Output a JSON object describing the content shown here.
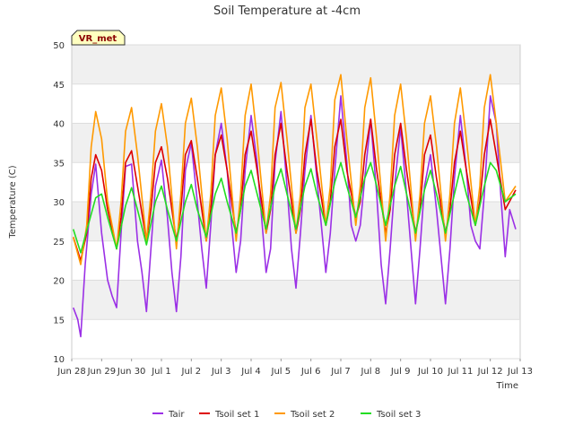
{
  "chart_data": {
    "type": "line",
    "title": "Soil Temperature at -4cm",
    "xlabel": "Time",
    "ylabel": "Temperature (C)",
    "ylim": [
      10,
      50
    ],
    "xlim": [
      0,
      15
    ],
    "y_ticks": [
      10,
      15,
      20,
      25,
      30,
      35,
      40,
      45,
      50
    ],
    "x_ticks": [
      {
        "v": 0,
        "label": "Jun 28"
      },
      {
        "v": 1,
        "label": "Jun 29"
      },
      {
        "v": 2,
        "label": "Jun 30"
      },
      {
        "v": 3,
        "label": "Jul 1"
      },
      {
        "v": 4,
        "label": "Jul 2"
      },
      {
        "v": 5,
        "label": "Jul 3"
      },
      {
        "v": 6,
        "label": "Jul 4"
      },
      {
        "v": 7,
        "label": "Jul 5"
      },
      {
        "v": 8,
        "label": "Jul 6"
      },
      {
        "v": 9,
        "label": "Jul 7"
      },
      {
        "v": 10,
        "label": "Jul 8"
      },
      {
        "v": 11,
        "label": "Jul 9"
      },
      {
        "v": 12,
        "label": "Jul 10"
      },
      {
        "v": 13,
        "label": "Jul 11"
      },
      {
        "v": 14,
        "label": "Jul 12"
      },
      {
        "v": 15,
        "label": "Jul 13"
      }
    ],
    "grid": true,
    "legend_position": "bottom-center",
    "annotation": "VR_met",
    "series": [
      {
        "name": "Tair",
        "color": "#9b30e6",
        "x": [
          0.05,
          0.2,
          0.3,
          0.45,
          0.65,
          0.8,
          1.0,
          1.2,
          1.35,
          1.5,
          1.65,
          1.8,
          2.0,
          2.2,
          2.35,
          2.5,
          2.65,
          2.8,
          3.0,
          3.2,
          3.35,
          3.5,
          3.65,
          3.8,
          4.0,
          4.2,
          4.35,
          4.5,
          4.65,
          4.8,
          5.0,
          5.2,
          5.35,
          5.5,
          5.65,
          5.8,
          6.0,
          6.2,
          6.35,
          6.5,
          6.65,
          6.8,
          7.0,
          7.2,
          7.35,
          7.5,
          7.65,
          7.8,
          8.0,
          8.2,
          8.35,
          8.5,
          8.65,
          8.8,
          9.0,
          9.2,
          9.35,
          9.5,
          9.65,
          9.8,
          10.0,
          10.2,
          10.35,
          10.5,
          10.65,
          10.8,
          11.0,
          11.2,
          11.35,
          11.5,
          11.65,
          11.8,
          12.0,
          12.2,
          12.35,
          12.5,
          12.65,
          12.8,
          13.0,
          13.2,
          13.35,
          13.5,
          13.65,
          13.8,
          14.0,
          14.2,
          14.35,
          14.5,
          14.65,
          14.85
        ],
        "y": [
          16.5,
          15,
          12.8,
          22,
          31,
          34.8,
          26,
          20,
          18,
          16.5,
          26,
          34.5,
          34.8,
          25,
          21,
          16,
          24,
          32,
          35.3,
          28,
          21,
          16,
          23,
          34,
          37.5,
          30,
          24,
          19,
          27,
          36,
          40,
          34,
          27,
          21,
          25,
          34,
          41,
          35,
          28,
          21,
          24,
          35,
          41.5,
          32,
          24,
          19,
          26,
          34,
          41,
          33,
          27,
          21,
          26,
          34,
          43.5,
          35,
          27,
          25,
          27,
          33,
          40.5,
          31,
          22,
          17,
          24,
          32,
          39.5,
          31,
          24,
          17,
          24,
          32,
          36,
          29,
          23,
          17,
          24,
          33,
          41,
          34,
          27,
          25,
          24,
          31,
          43.5,
          40,
          31,
          23,
          29,
          26.5
        ]
      },
      {
        "name": "Tsoil set 1",
        "color": "#dd0000",
        "x": [
          0.05,
          0.3,
          0.5,
          0.65,
          0.8,
          1.0,
          1.2,
          1.5,
          1.65,
          1.8,
          2.0,
          2.2,
          2.5,
          2.65,
          2.8,
          3.0,
          3.2,
          3.5,
          3.65,
          3.8,
          4.0,
          4.2,
          4.5,
          4.65,
          4.8,
          5.0,
          5.2,
          5.5,
          5.65,
          5.8,
          6.0,
          6.2,
          6.5,
          6.65,
          6.8,
          7.0,
          7.2,
          7.5,
          7.65,
          7.8,
          8.0,
          8.2,
          8.5,
          8.65,
          8.8,
          9.0,
          9.2,
          9.5,
          9.65,
          9.8,
          10.0,
          10.2,
          10.5,
          10.65,
          10.8,
          11.0,
          11.2,
          11.5,
          11.65,
          11.8,
          12.0,
          12.2,
          12.5,
          12.65,
          12.8,
          13.0,
          13.2,
          13.5,
          13.65,
          13.8,
          14.0,
          14.2,
          14.5,
          14.85
        ],
        "y": [
          25.5,
          22.5,
          26,
          33,
          36,
          34,
          29,
          24,
          28,
          35,
          36.5,
          32,
          25,
          29,
          35,
          37,
          33,
          25,
          29,
          36,
          37.8,
          33,
          25,
          29,
          36,
          38.5,
          34,
          26,
          29,
          36,
          39,
          34,
          26,
          29,
          36,
          40,
          34,
          26,
          29,
          36,
          40.5,
          34,
          27,
          30,
          37,
          40.5,
          34,
          28,
          30,
          36,
          40.5,
          34,
          26,
          29,
          36,
          40,
          34,
          26,
          29,
          36,
          38.5,
          33,
          26,
          29,
          35,
          39,
          34,
          27,
          30,
          36,
          40.5,
          36,
          29,
          31.5
        ]
      },
      {
        "name": "Tsoil set 2",
        "color": "#ff9900",
        "x": [
          0.05,
          0.3,
          0.5,
          0.65,
          0.8,
          1.0,
          1.2,
          1.5,
          1.65,
          1.8,
          2.0,
          2.2,
          2.5,
          2.65,
          2.8,
          3.0,
          3.2,
          3.5,
          3.65,
          3.8,
          4.0,
          4.2,
          4.5,
          4.65,
          4.8,
          5.0,
          5.2,
          5.5,
          5.65,
          5.8,
          6.0,
          6.2,
          6.5,
          6.65,
          6.8,
          7.0,
          7.2,
          7.5,
          7.65,
          7.8,
          8.0,
          8.2,
          8.5,
          8.65,
          8.8,
          9.0,
          9.2,
          9.5,
          9.65,
          9.8,
          10.0,
          10.2,
          10.5,
          10.65,
          10.8,
          11.0,
          11.2,
          11.5,
          11.65,
          11.8,
          12.0,
          12.2,
          12.5,
          12.65,
          12.8,
          13.0,
          13.2,
          13.5,
          13.65,
          13.8,
          14.0,
          14.2,
          14.5,
          14.85
        ],
        "y": [
          25.5,
          22,
          27,
          37,
          41.5,
          38,
          30,
          24,
          30,
          39,
          42,
          36,
          25,
          31,
          39,
          42.5,
          37,
          24,
          31,
          40,
          43.2,
          37,
          25,
          31,
          41,
          44.5,
          38,
          25,
          31,
          41,
          45,
          38,
          26,
          31,
          42,
          45.2,
          38,
          26,
          31,
          42,
          45,
          38,
          27,
          32,
          43,
          46.2,
          38,
          27,
          32,
          42,
          45.8,
          38,
          25,
          31,
          41,
          45,
          38,
          25,
          31,
          40,
          43.5,
          37,
          25,
          31,
          40,
          44.5,
          38,
          27,
          32,
          42,
          46.2,
          40,
          30,
          32
        ]
      },
      {
        "name": "Tsoil set 3",
        "color": "#22dd22",
        "x": [
          0.05,
          0.3,
          0.55,
          0.8,
          1.0,
          1.2,
          1.5,
          1.8,
          2.0,
          2.2,
          2.5,
          2.8,
          3.0,
          3.2,
          3.5,
          3.8,
          4.0,
          4.2,
          4.5,
          4.8,
          5.0,
          5.2,
          5.5,
          5.8,
          6.0,
          6.2,
          6.5,
          6.8,
          7.0,
          7.2,
          7.5,
          7.8,
          8.0,
          8.2,
          8.5,
          8.8,
          9.0,
          9.2,
          9.5,
          9.8,
          10.0,
          10.2,
          10.5,
          10.8,
          11.0,
          11.2,
          11.5,
          11.8,
          12.0,
          12.2,
          12.5,
          12.8,
          13.0,
          13.2,
          13.5,
          13.8,
          14.0,
          14.2,
          14.5,
          14.85
        ],
        "y": [
          26.5,
          23.5,
          27,
          30.5,
          31,
          28,
          24,
          29.5,
          31.8,
          29,
          24.5,
          30,
          32,
          29,
          25,
          30,
          32.2,
          29,
          25.5,
          31,
          33,
          30,
          26,
          32,
          34,
          31,
          26.5,
          32,
          34.2,
          31,
          26.5,
          32,
          34.2,
          31,
          27,
          32.5,
          35,
          32,
          28,
          33,
          35,
          32,
          27,
          32,
          34.5,
          31,
          26,
          31.5,
          34,
          31,
          26,
          31,
          34.2,
          31,
          27,
          32,
          35,
          34,
          30,
          31
        ]
      }
    ]
  }
}
